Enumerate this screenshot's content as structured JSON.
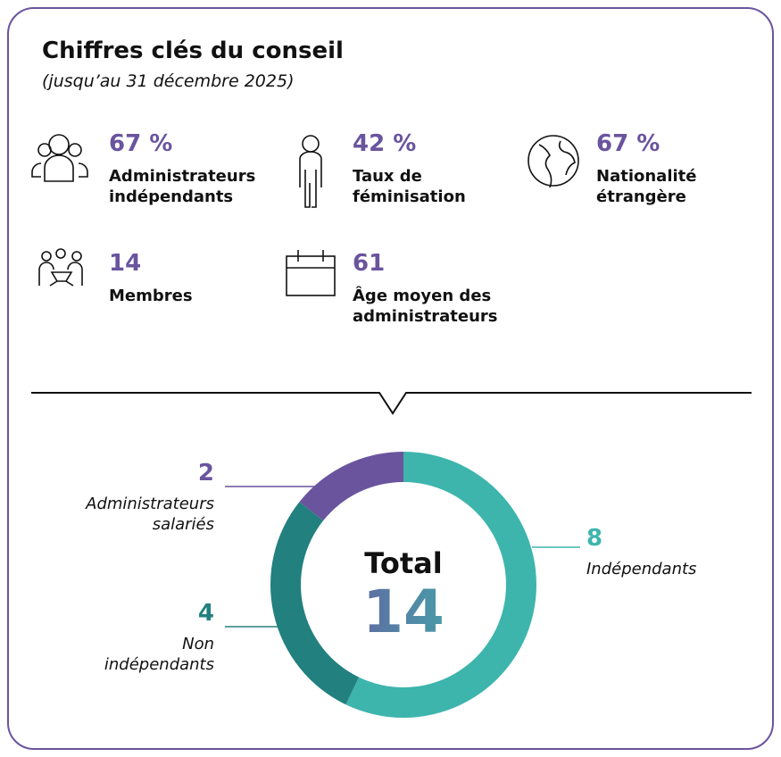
{
  "header": {
    "title": "Chiffres clés du conseil",
    "subtitle": "(jusqu’au 31 décembre 2025)"
  },
  "stats": [
    {
      "value": "67 %",
      "label": "Administrateurs indépendants"
    },
    {
      "value": "42 %",
      "label": "Taux de féminisation"
    },
    {
      "value": "67 %",
      "label": "Nationalité étrangère"
    },
    {
      "value": "14",
      "label": "Membres"
    },
    {
      "value": "61",
      "label": "Âge moyen des administrateurs"
    }
  ],
  "chart_data": {
    "type": "donut",
    "categories": [
      "Indépendants",
      "Non indépendants",
      "Administrateurs salariés"
    ],
    "values": [
      8,
      4,
      2
    ],
    "colors": [
      "#3db5ad",
      "#22807f",
      "#6a549e"
    ],
    "center_label": "Total",
    "center_value": 14
  }
}
